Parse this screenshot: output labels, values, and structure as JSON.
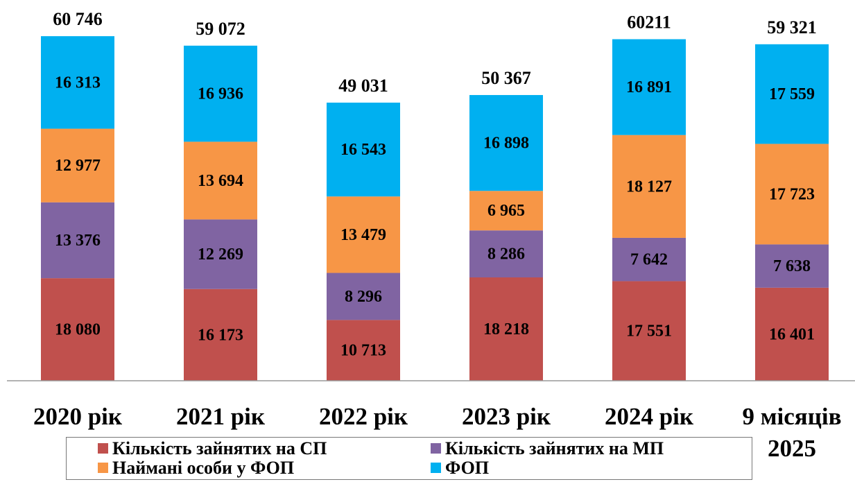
{
  "chart_data": {
    "type": "stacked-bar",
    "categories": [
      "2020 рік",
      "2021 рік",
      "2022 рік",
      "2023 рік",
      "2024 рік",
      "9 місяців 2025"
    ],
    "series": [
      {
        "name": "Кількість зайнятих на СП",
        "color": "#c0504d",
        "values": [
          18080,
          16173,
          10713,
          18218,
          17551,
          16401
        ],
        "value_labels": [
          "18 080",
          "16 173",
          "10 713",
          "18 218",
          "17 551",
          "16 401"
        ]
      },
      {
        "name": "Кількість зайнятих на МП",
        "color": "#8064a2",
        "values": [
          13376,
          12269,
          8296,
          8286,
          7642,
          7638
        ],
        "value_labels": [
          "13 376",
          "12 269",
          "8 296",
          "8 286",
          "7 642",
          "7 638"
        ]
      },
      {
        "name": "Наймані особи у ФОП",
        "color": "#f79646",
        "values": [
          12977,
          13694,
          13479,
          6965,
          18127,
          17723
        ],
        "value_labels": [
          "12 977",
          "13 694",
          "13 479",
          "6 965",
          "18 127",
          "17 723"
        ]
      },
      {
        "name": "ФОП",
        "color": "#00b0f0",
        "values": [
          16313,
          16936,
          16543,
          16898,
          16891,
          17559
        ],
        "value_labels": [
          "16 313",
          "16 936",
          "16 543",
          "16 898",
          "16 891",
          "17 559"
        ]
      }
    ],
    "totals": {
      "values": [
        60746,
        59072,
        49031,
        50367,
        60211,
        59321
      ],
      "value_labels": [
        "60 746",
        "59 072",
        "49 031",
        "50 367",
        "60211",
        "59 321"
      ]
    },
    "ylim": [
      0,
      67000
    ]
  }
}
